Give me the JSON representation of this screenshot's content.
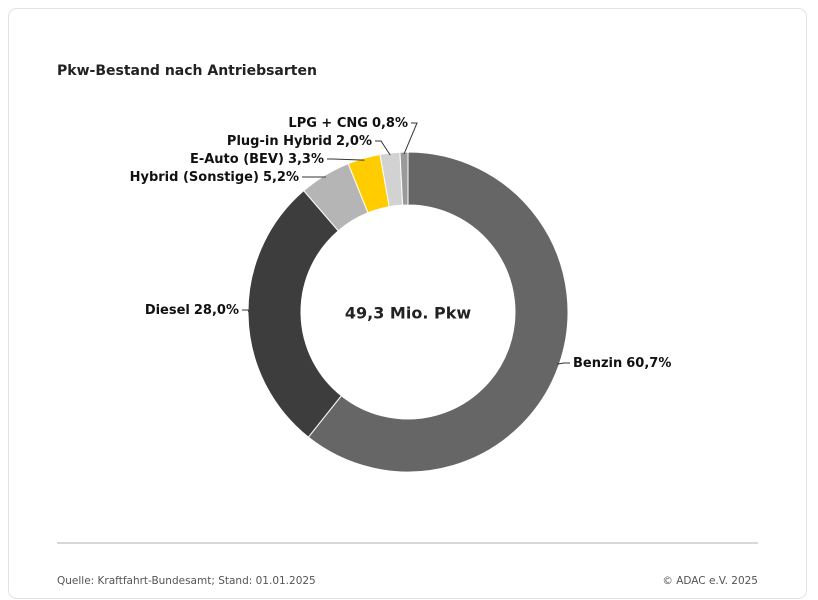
{
  "chart_data": {
    "type": "pie",
    "donut": true,
    "title": "Pkw-Bestand nach Antriebsarten",
    "center_label": "49,3 Mio. Pkw",
    "categories": [
      "Benzin",
      "Diesel",
      "Hybrid (Sonstige)",
      "E-Auto (BEV)",
      "Plug-in Hybrid",
      "LPG + CNG"
    ],
    "values": [
      60.7,
      28.0,
      5.2,
      3.3,
      2.0,
      0.8
    ],
    "value_labels": [
      "60,7%",
      "28,0%",
      "5,2%",
      "3,3%",
      "2,0%",
      "0,8%"
    ],
    "colors": [
      "#666666",
      "#3d3d3d",
      "#b5b5b5",
      "#ffcc00",
      "#d2d2d2",
      "#9a9a9a"
    ],
    "source": "Quelle: Kraftfahrt-Bundesamt; Stand: 01.01.2025",
    "copyright": "© ADAC e.V. 2025"
  }
}
